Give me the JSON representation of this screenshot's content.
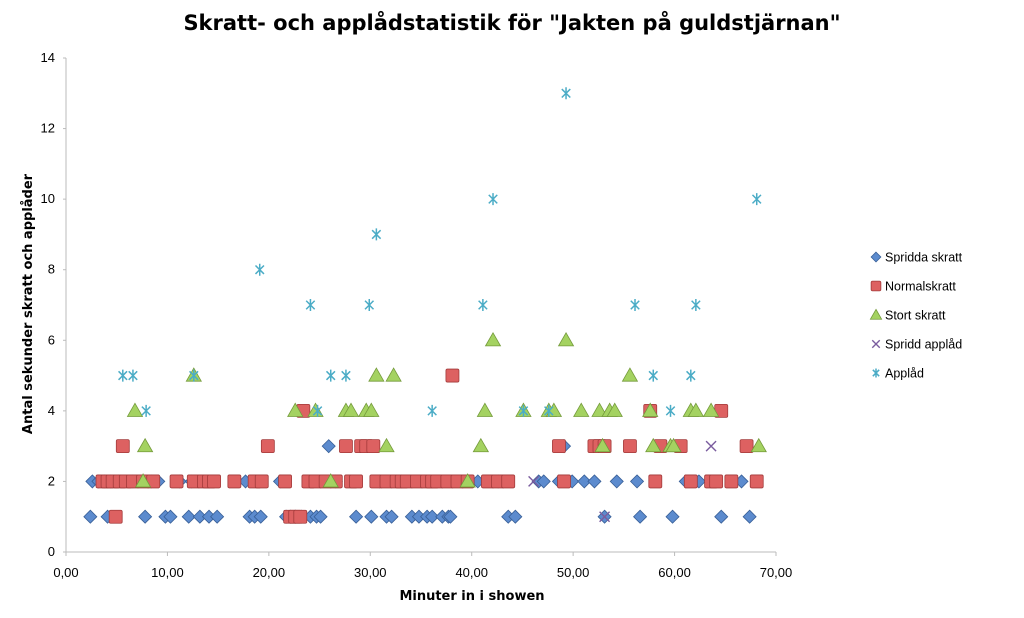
{
  "chart_data": {
    "type": "scatter",
    "title": "Skratt- och applådstatistik för \"Jakten på guldstjärnan\"",
    "xlabel": "Minuter in i showen",
    "ylabel": "Antal sekunder skratt och applåder",
    "xlim": [
      0,
      70
    ],
    "ylim": [
      0,
      14
    ],
    "xticks": [
      "0,00",
      "10,00",
      "20,00",
      "30,00",
      "40,00",
      "50,00",
      "60,00",
      "70,00"
    ],
    "yticks": [
      "0",
      "2",
      "4",
      "6",
      "8",
      "10",
      "12",
      "14"
    ],
    "grid": false,
    "legend_position": "right",
    "series": [
      {
        "name": "Spridda skratt",
        "marker": "diamond",
        "color": "#4a7ec9",
        "points": [
          [
            2.4,
            1
          ],
          [
            2.6,
            2
          ],
          [
            3.2,
            2
          ],
          [
            3.8,
            2
          ],
          [
            4.1,
            1
          ],
          [
            4.4,
            2
          ],
          [
            5.2,
            2
          ],
          [
            6.6,
            2
          ],
          [
            7.8,
            1
          ],
          [
            8.4,
            2
          ],
          [
            9.1,
            2
          ],
          [
            9.8,
            1
          ],
          [
            10.3,
            1
          ],
          [
            11.2,
            2
          ],
          [
            12.1,
            1
          ],
          [
            12.4,
            2
          ],
          [
            13.2,
            1
          ],
          [
            14.1,
            1
          ],
          [
            14.9,
            1
          ],
          [
            17.7,
            2
          ],
          [
            18.1,
            1
          ],
          [
            18.6,
            1
          ],
          [
            19.2,
            1
          ],
          [
            21.1,
            2
          ],
          [
            21.7,
            1
          ],
          [
            22.1,
            1
          ],
          [
            22.6,
            1
          ],
          [
            23.2,
            1
          ],
          [
            24.1,
            1
          ],
          [
            24.7,
            1
          ],
          [
            25.1,
            1
          ],
          [
            25.9,
            3
          ],
          [
            26.6,
            2
          ],
          [
            28.6,
            1
          ],
          [
            30.1,
            1
          ],
          [
            30.9,
            2
          ],
          [
            31.6,
            1
          ],
          [
            32.1,
            1
          ],
          [
            33.1,
            2
          ],
          [
            34.1,
            1
          ],
          [
            34.8,
            1
          ],
          [
            35.6,
            1
          ],
          [
            36.1,
            1
          ],
          [
            37.1,
            1
          ],
          [
            37.7,
            1
          ],
          [
            37.9,
            1
          ],
          [
            40.6,
            2
          ],
          [
            42.6,
            2
          ],
          [
            43.6,
            1
          ],
          [
            44.3,
            1
          ],
          [
            46.6,
            2
          ],
          [
            47.1,
            2
          ],
          [
            48.6,
            2
          ],
          [
            49.1,
            3
          ],
          [
            49.9,
            2
          ],
          [
            51.1,
            2
          ],
          [
            52.1,
            2
          ],
          [
            53.1,
            1
          ],
          [
            54.3,
            2
          ],
          [
            56.3,
            2
          ],
          [
            56.6,
            1
          ],
          [
            59.8,
            1
          ],
          [
            61.1,
            2
          ],
          [
            62.4,
            2
          ],
          [
            64.6,
            1
          ],
          [
            66.6,
            2
          ],
          [
            67.4,
            1
          ]
        ]
      },
      {
        "name": "Normalskratt",
        "marker": "square",
        "color": "#d94f4f",
        "points": [
          [
            3.6,
            2
          ],
          [
            4.1,
            2
          ],
          [
            4.6,
            2
          ],
          [
            4.9,
            1
          ],
          [
            5.3,
            2
          ],
          [
            5.6,
            3
          ],
          [
            5.9,
            2
          ],
          [
            6.6,
            2
          ],
          [
            7.6,
            2
          ],
          [
            8.6,
            2
          ],
          [
            10.9,
            2
          ],
          [
            12.6,
            2
          ],
          [
            13.6,
            2
          ],
          [
            14.1,
            2
          ],
          [
            14.6,
            2
          ],
          [
            16.6,
            2
          ],
          [
            18.6,
            2
          ],
          [
            19.3,
            2
          ],
          [
            19.9,
            3
          ],
          [
            21.6,
            2
          ],
          [
            22.1,
            1
          ],
          [
            22.6,
            1
          ],
          [
            23.1,
            1
          ],
          [
            23.4,
            4
          ],
          [
            23.9,
            2
          ],
          [
            24.6,
            2
          ],
          [
            25.6,
            2
          ],
          [
            26.6,
            2
          ],
          [
            27.6,
            3
          ],
          [
            28.1,
            2
          ],
          [
            28.6,
            2
          ],
          [
            29.1,
            3
          ],
          [
            29.6,
            3
          ],
          [
            30.3,
            3
          ],
          [
            30.6,
            2
          ],
          [
            31.6,
            2
          ],
          [
            32.6,
            2
          ],
          [
            33.1,
            2
          ],
          [
            33.6,
            2
          ],
          [
            34.6,
            2
          ],
          [
            35.6,
            2
          ],
          [
            36.1,
            2
          ],
          [
            36.6,
            2
          ],
          [
            37.6,
            2
          ],
          [
            38.1,
            5
          ],
          [
            38.6,
            2
          ],
          [
            39.6,
            2
          ],
          [
            41.6,
            2
          ],
          [
            42.6,
            2
          ],
          [
            43.6,
            2
          ],
          [
            48.6,
            3
          ],
          [
            49.1,
            2
          ],
          [
            52.1,
            3
          ],
          [
            52.6,
            3
          ],
          [
            53.1,
            3
          ],
          [
            55.6,
            3
          ],
          [
            57.6,
            4
          ],
          [
            58.1,
            2
          ],
          [
            58.6,
            3
          ],
          [
            60.6,
            3
          ],
          [
            61.6,
            2
          ],
          [
            63.6,
            2
          ],
          [
            64.1,
            2
          ],
          [
            64.6,
            4
          ],
          [
            65.6,
            2
          ],
          [
            67.1,
            3
          ],
          [
            68.1,
            2
          ]
        ]
      },
      {
        "name": "Stort skratt",
        "marker": "triangle",
        "color": "#9acd4f",
        "points": [
          [
            6.8,
            4
          ],
          [
            7.6,
            2
          ],
          [
            7.8,
            3
          ],
          [
            12.6,
            5
          ],
          [
            22.6,
            4
          ],
          [
            24.6,
            4
          ],
          [
            26.1,
            2
          ],
          [
            27.6,
            4
          ],
          [
            28.1,
            4
          ],
          [
            29.6,
            4
          ],
          [
            30.1,
            4
          ],
          [
            30.6,
            5
          ],
          [
            31.6,
            3
          ],
          [
            32.3,
            5
          ],
          [
            39.6,
            2
          ],
          [
            40.9,
            3
          ],
          [
            41.3,
            4
          ],
          [
            42.1,
            6
          ],
          [
            45.1,
            4
          ],
          [
            47.6,
            4
          ],
          [
            48.1,
            4
          ],
          [
            49.3,
            6
          ],
          [
            50.8,
            4
          ],
          [
            52.6,
            4
          ],
          [
            52.9,
            3
          ],
          [
            53.6,
            4
          ],
          [
            54.1,
            4
          ],
          [
            55.6,
            5
          ],
          [
            57.6,
            4
          ],
          [
            57.9,
            3
          ],
          [
            59.6,
            3
          ],
          [
            59.9,
            3
          ],
          [
            61.6,
            4
          ],
          [
            62.1,
            4
          ],
          [
            63.6,
            4
          ],
          [
            68.3,
            3
          ]
        ]
      },
      {
        "name": "Spridd applåd",
        "marker": "x",
        "color": "#7a5c9e",
        "points": [
          [
            46.1,
            2
          ],
          [
            53.1,
            1
          ],
          [
            63.6,
            3
          ]
        ]
      },
      {
        "name": "Applåd",
        "marker": "asterisk",
        "color": "#4bacc6",
        "points": [
          [
            5.6,
            5
          ],
          [
            6.6,
            5
          ],
          [
            7.9,
            4
          ],
          [
            12.6,
            5
          ],
          [
            19.1,
            8
          ],
          [
            24.1,
            7
          ],
          [
            24.8,
            4
          ],
          [
            26.1,
            5
          ],
          [
            27.6,
            5
          ],
          [
            29.9,
            7
          ],
          [
            30.6,
            9
          ],
          [
            36.1,
            4
          ],
          [
            41.1,
            7
          ],
          [
            42.1,
            10
          ],
          [
            45.1,
            4
          ],
          [
            47.6,
            4
          ],
          [
            49.3,
            13
          ],
          [
            56.1,
            7
          ],
          [
            57.9,
            5
          ],
          [
            59.6,
            4
          ],
          [
            61.6,
            5
          ],
          [
            62.1,
            7
          ],
          [
            68.1,
            10
          ]
        ]
      }
    ]
  }
}
